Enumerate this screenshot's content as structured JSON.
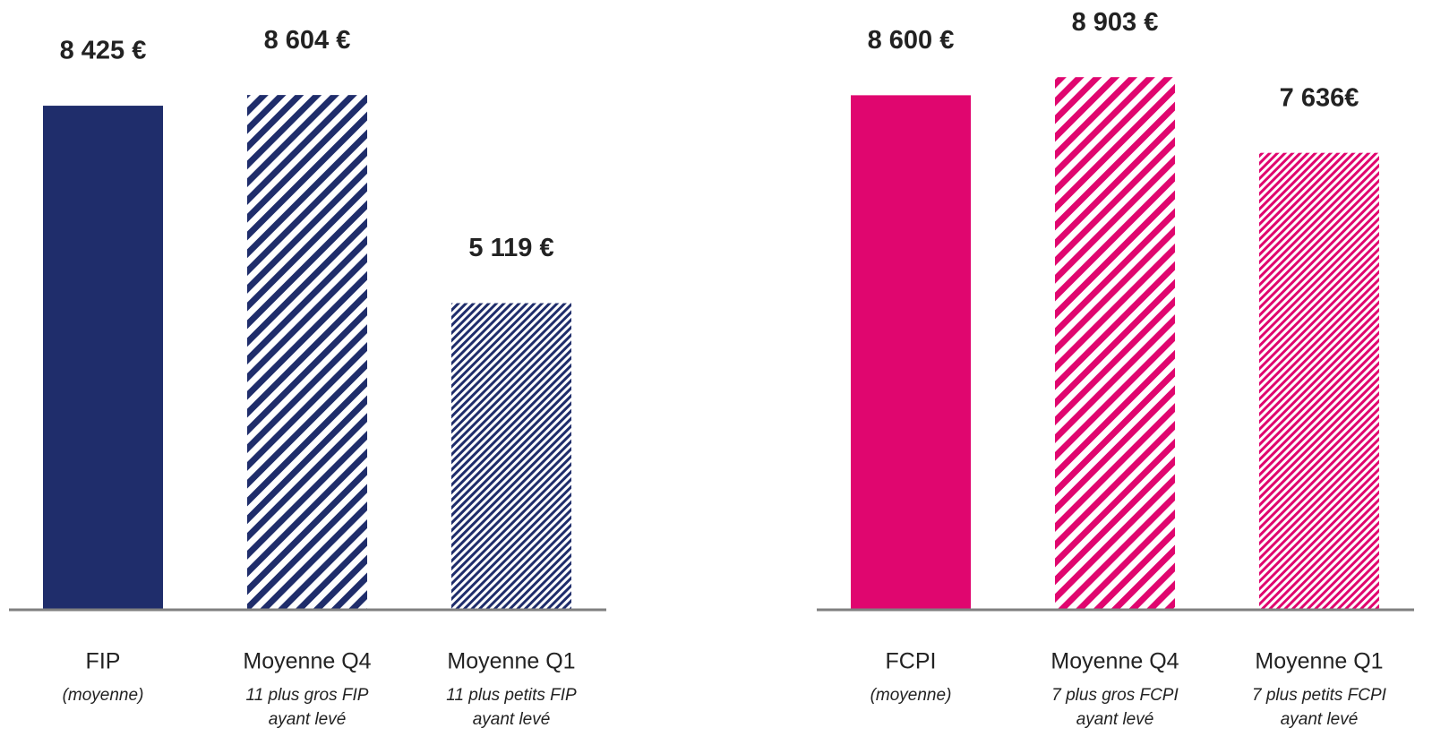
{
  "chart_data": [
    {
      "type": "bar",
      "categories": [
        "FIP",
        "Moyenne Q4",
        "Moyenne Q1"
      ],
      "sublabels": [
        [
          "(moyenne)"
        ],
        [
          "11 plus gros FIP",
          "ayant levé"
        ],
        [
          "11 plus petits FIP",
          "ayant levé"
        ]
      ],
      "values": [
        8425,
        8604,
        5119
      ],
      "value_labels": [
        "8 425 €",
        "8 604 €",
        "5 119 €"
      ],
      "color": "#1f2d6b",
      "ylim": [
        0,
        10000
      ]
    },
    {
      "type": "bar",
      "categories": [
        "FCPI",
        "Moyenne Q4",
        "Moyenne Q1"
      ],
      "sublabels": [
        [
          "(moyenne)"
        ],
        [
          "7 plus gros FCPI",
          "ayant levé"
        ],
        [
          "7 plus petits FCPI",
          "ayant levé"
        ]
      ],
      "values": [
        8600,
        8903,
        7636
      ],
      "value_labels": [
        "8 600 €",
        "8 903 €",
        "7 636€"
      ],
      "color": "#e0066f",
      "ylim": [
        0,
        10000
      ]
    }
  ]
}
